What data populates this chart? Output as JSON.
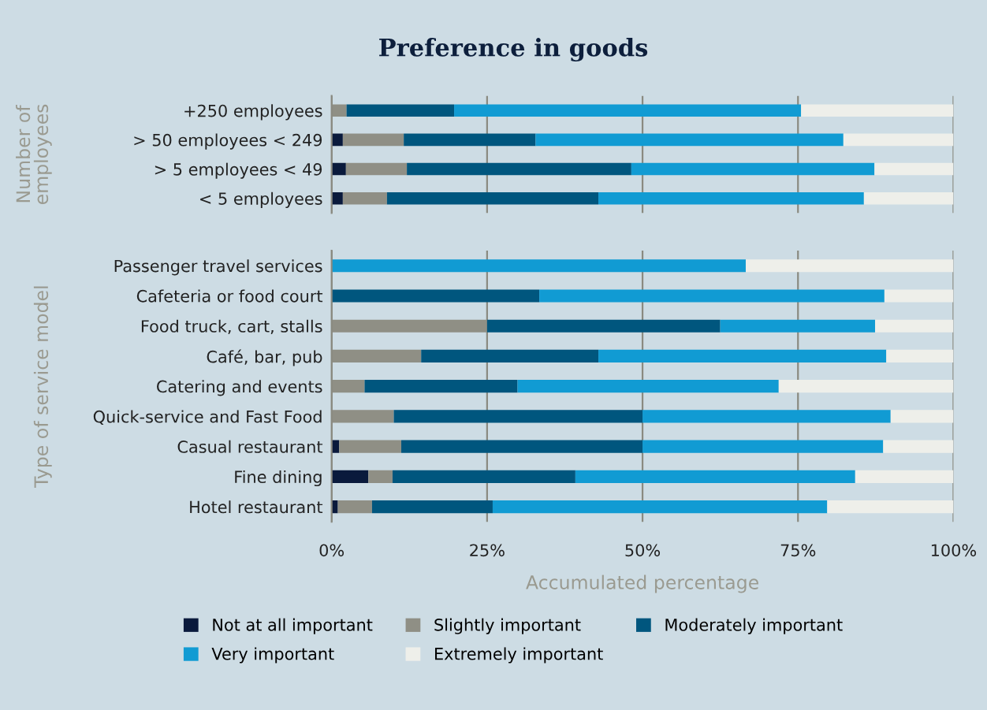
{
  "chart_data": [
    {
      "type": "bar",
      "orientation": "horizontal",
      "stacked": true,
      "title": "Preference in goods",
      "ylabel": "Number of\nemployees",
      "categories": [
        "+250 employees",
        "> 50 employees < 249",
        "> 5 employees < 49",
        "< 5 employees"
      ],
      "series": [
        {
          "name": "Not at all important",
          "color": "#0a1a3c",
          "values": [
            0,
            1.8,
            2.3,
            1.8
          ]
        },
        {
          "name": "Slightly important",
          "color": "#8f8f85",
          "values": [
            2.4,
            9.8,
            9.8,
            7.1
          ]
        },
        {
          "name": "Moderately important",
          "color": "#00567e",
          "values": [
            17.3,
            21.2,
            36.1,
            34.0
          ]
        },
        {
          "name": "Very important",
          "color": "#119bd3",
          "values": [
            55.8,
            49.5,
            39.1,
            42.7
          ]
        },
        {
          "name": "Extremely important",
          "color": "#eeefea",
          "values": [
            24.5,
            17.7,
            12.7,
            14.4
          ]
        }
      ],
      "xlim": [
        0,
        100
      ],
      "xticks": [
        {
          "value": 0,
          "label": null
        },
        {
          "value": 25,
          "label": null
        },
        {
          "value": 50,
          "label": null
        },
        {
          "value": 75,
          "label": null
        },
        {
          "value": 100,
          "label": null
        }
      ],
      "grid": "x",
      "tick_labels": "y",
      "legend": "bottom"
    },
    {
      "type": "bar",
      "orientation": "horizontal",
      "stacked": true,
      "ylabel": "Type of service model",
      "xlabel": "Accumulated percentage",
      "categories": [
        "Passenger travel services",
        "Cafeteria or food court",
        "Food truck, cart, stalls",
        "Café, bar, pub",
        "Catering and events",
        "Quick-service and Fast Food",
        "Casual restaurant",
        "Fine dining",
        "Hotel restaurant"
      ],
      "series": [
        {
          "color": "#0a1a3c",
          "values": [
            0,
            0,
            0,
            0,
            0,
            0,
            1.2,
            5.9,
            1.0
          ]
        },
        {
          "color": "#8f8f85",
          "values": [
            0,
            0,
            25.0,
            14.4,
            5.3,
            10.0,
            10.0,
            3.9,
            5.5
          ]
        },
        {
          "color": "#00567e",
          "values": [
            0,
            33.4,
            37.5,
            28.5,
            24.6,
            40.0,
            38.8,
            29.4,
            19.4
          ]
        },
        {
          "color": "#119bd3",
          "values": [
            66.6,
            55.5,
            24.9,
            46.3,
            42.0,
            39.9,
            38.7,
            45.0,
            53.8
          ]
        },
        {
          "color": "#eeefea",
          "values": [
            33.4,
            11.1,
            12.6,
            10.8,
            28.1,
            10.1,
            11.3,
            15.8,
            20.3
          ]
        }
      ],
      "xlim": [
        0,
        100
      ],
      "xticks": [
        {
          "value": 0,
          "label": "0%"
        },
        {
          "value": 25,
          "label": "25%"
        },
        {
          "value": 50,
          "label": "50%"
        },
        {
          "value": 75,
          "label": "75%"
        },
        {
          "value": 100,
          "label": "100%"
        }
      ],
      "grid": "x"
    }
  ]
}
